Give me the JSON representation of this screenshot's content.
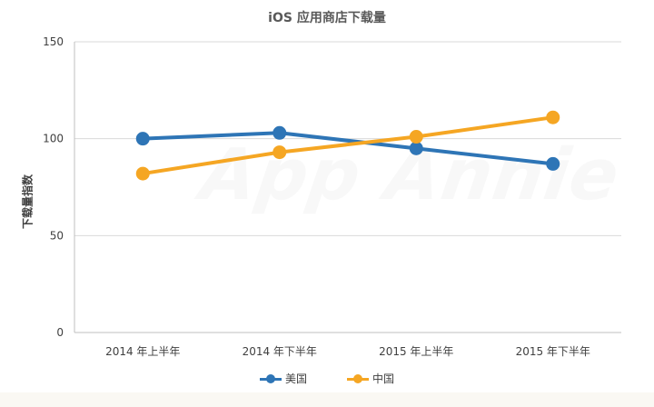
{
  "chart_data": {
    "type": "line",
    "title": "iOS 应用商店下载量",
    "xlabel": "",
    "ylabel": "下载量指数",
    "categories": [
      "2014 年上半年",
      "2014 年下半年",
      "2015 年上半年",
      "2015 年下半年"
    ],
    "series": [
      {
        "name": "美国",
        "color": "#2e75b6",
        "values": [
          100,
          103,
          95,
          87
        ]
      },
      {
        "name": "中国",
        "color": "#f5a623",
        "values": [
          82,
          93,
          101,
          111
        ]
      }
    ],
    "ylim": [
      0,
      150
    ],
    "yticks": [
      0,
      50,
      100,
      150
    ],
    "grid": true,
    "legend": "bottom-center",
    "watermark": "App Annie"
  }
}
